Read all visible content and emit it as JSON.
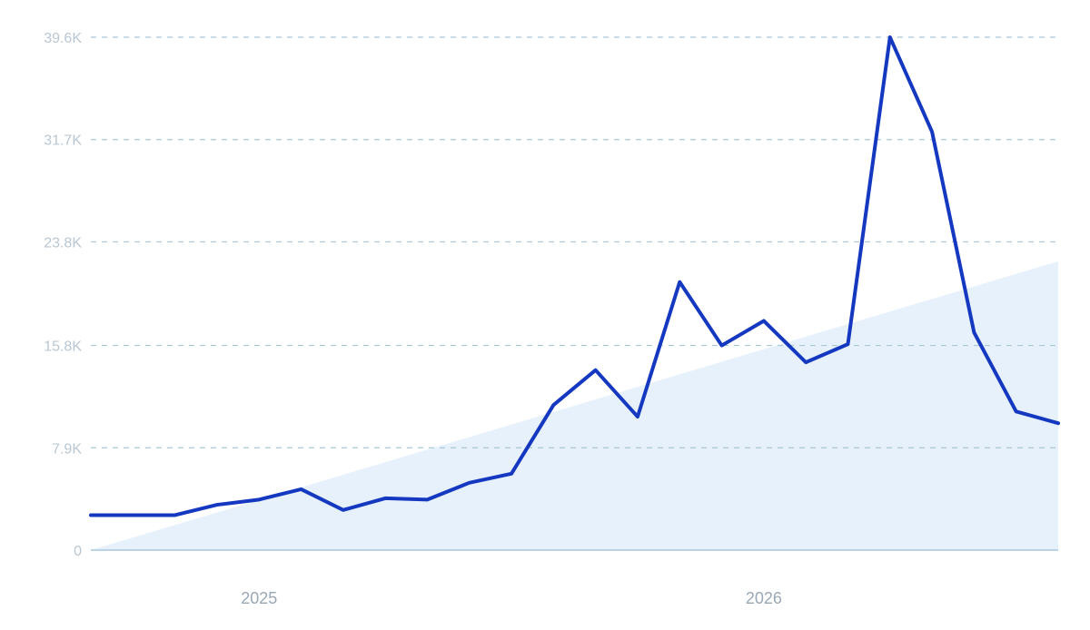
{
  "chart_data": {
    "type": "line",
    "title": "",
    "xlabel": "",
    "ylabel": "",
    "y_ticks": [
      "0",
      "7.9K",
      "15.8K",
      "23.8K",
      "31.7K",
      "39.6K"
    ],
    "y_tick_values": [
      0,
      7900,
      15800,
      23800,
      31700,
      39600
    ],
    "x_ticks": [
      "2025",
      "2026"
    ],
    "x_tick_index": [
      4,
      16
    ],
    "ylim": [
      0,
      39600
    ],
    "x_count": 24,
    "grid": true,
    "legend": "none",
    "series": [
      {
        "values": [
          2700,
          2700,
          2700,
          3500,
          3900,
          4700,
          3100,
          4000,
          3900,
          5200,
          5900,
          11200,
          13900,
          10300,
          20700,
          15800,
          17700,
          14500,
          15900,
          39600,
          32300,
          16800,
          10700,
          9800
        ]
      }
    ],
    "trend_area": {
      "start_value": 0,
      "end_value": 22300
    },
    "colors": {
      "line": "#1438c0",
      "area": "#e6f0fb",
      "grid": "#a9c7d6",
      "tick_text": "#b9c7d3",
      "x_tick_text": "#9aa8b6"
    }
  }
}
